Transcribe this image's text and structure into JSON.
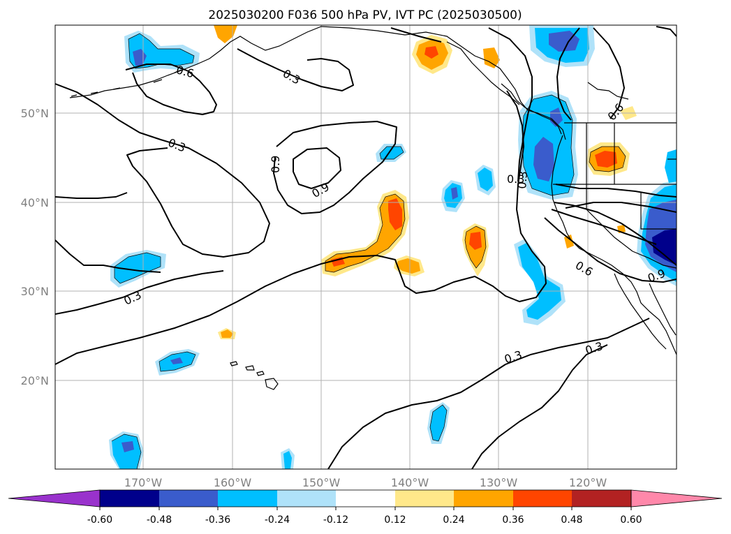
{
  "title": "2025030200 F036 500 hPa PV, IVT PC (2025030500)",
  "lat_labels": [
    "50°N",
    "40°N",
    "30°N",
    "20°N"
  ],
  "lon_labels": [
    "170°W",
    "160°W",
    "150°W",
    "140°W",
    "130°W",
    "120°W"
  ],
  "contour_labels": [
    "0.6",
    "0.3",
    "0.3",
    "0.9",
    "0.9",
    "0.6",
    "0.3",
    "0.3",
    "0.6",
    "0.9",
    "0.3",
    "0.3",
    "0.3"
  ],
  "colorbar": {
    "ticks": [
      "-0.60",
      "-0.48",
      "-0.36",
      "-0.24",
      "-0.12",
      "0.12",
      "0.24",
      "0.36",
      "0.48",
      "0.60"
    ],
    "colors": [
      "#9932cc",
      "#00008b",
      "#3a5ccc",
      "#00bfff",
      "#afe2f9",
      "#ffffff",
      "#ffe88a",
      "#ffa500",
      "#ff4500",
      "#b22222",
      "#ff88aa"
    ]
  },
  "colors": {
    "light_blue": "#afe2f9",
    "blue": "#00bfff",
    "mid_blue": "#3a5ccc",
    "navy": "#00008b",
    "purple": "#9932cc",
    "yellow": "#ffe88a",
    "orange": "#ffa500",
    "red_orange": "#ff4500"
  }
}
